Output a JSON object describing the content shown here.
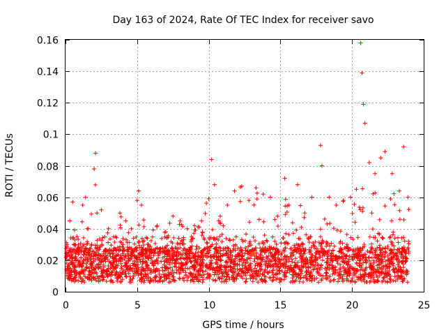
{
  "chart_data": {
    "type": "scatter",
    "title": "Day 163 of 2024, Rate Of TEC Index for receiver savo",
    "xlabel": "GPS time / hours",
    "ylabel": "ROTI / TECUs",
    "xlim": [
      0,
      25
    ],
    "ylim": [
      0,
      0.16
    ],
    "xticks": [
      0,
      5,
      10,
      15,
      20,
      25
    ],
    "yticks": [
      0,
      0.02,
      0.04,
      0.06,
      0.08,
      0.1,
      0.12,
      0.14,
      0.16
    ],
    "xtick_labels": [
      "0",
      "5",
      "10",
      "15",
      "20",
      "25"
    ],
    "ytick_labels": [
      "0",
      "0.02",
      "0.04",
      "0.06",
      "0.08",
      "0.1",
      "0.12",
      "0.14",
      "0.16"
    ],
    "grid": true,
    "marker": "+",
    "marker_color": "#ff0000",
    "series": [
      {
        "name": "ROTI",
        "description": "dense point cloud, typically 0.005-0.04 TECU/min across 0-24 h",
        "x": [
          0.1,
          0.3,
          0.5,
          0.8,
          1.2,
          1.4,
          1.6,
          2.0,
          2.1,
          2.2,
          2.5,
          3.0,
          3.5,
          3.8,
          4.2,
          4.6,
          5.0,
          5.1,
          5.3,
          5.8,
          6.4,
          7.0,
          7.5,
          8.0,
          8.5,
          9.0,
          9.5,
          10.0,
          10.2,
          10.4,
          10.8,
          11.3,
          11.8,
          12.3,
          12.8,
          13.3,
          13.8,
          14.3,
          14.8,
          15.3,
          15.6,
          16.2,
          16.7,
          17.2,
          17.8,
          17.9,
          18.4,
          18.9,
          19.4,
          19.9,
          20.3,
          20.6,
          20.7,
          20.8,
          20.9,
          21.2,
          21.6,
          22.0,
          22.3,
          22.8,
          23.3,
          23.6,
          23.9
        ],
        "y": [
          0.03,
          0.045,
          0.057,
          0.035,
          0.055,
          0.06,
          0.04,
          0.078,
          0.088,
          0.05,
          0.052,
          0.04,
          0.035,
          0.05,
          0.045,
          0.04,
          0.058,
          0.064,
          0.055,
          0.03,
          0.042,
          0.038,
          0.048,
          0.045,
          0.04,
          0.042,
          0.045,
          0.059,
          0.084,
          0.068,
          0.048,
          0.055,
          0.064,
          0.067,
          0.058,
          0.066,
          0.062,
          0.06,
          0.048,
          0.072,
          0.055,
          0.068,
          0.05,
          0.06,
          0.093,
          0.08,
          0.06,
          0.055,
          0.058,
          0.06,
          0.065,
          0.158,
          0.139,
          0.119,
          0.107,
          0.082,
          0.075,
          0.085,
          0.089,
          0.075,
          0.064,
          0.092,
          0.06
        ]
      }
    ]
  }
}
